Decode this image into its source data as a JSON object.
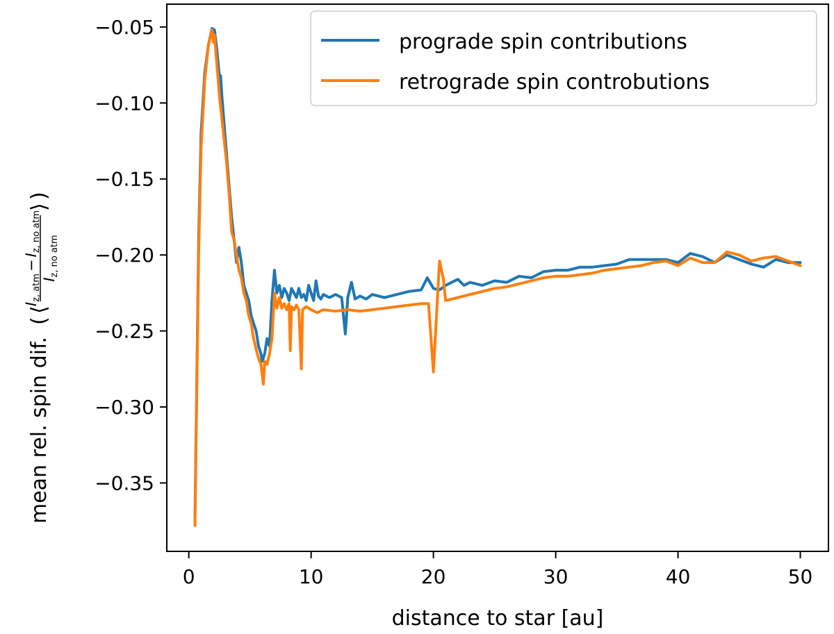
{
  "chart_data": {
    "type": "line",
    "xlabel": "distance to star [au]",
    "ylabel_prefix": "mean rel. spin dif.",
    "ylabel_numerator": "I_{z, atm} − I_{z, no atm}",
    "ylabel_denominator": "I_{z, no atm}",
    "ylabel_num_main_1": "I",
    "ylabel_num_sub_1": "z, atm",
    "ylabel_num_minus": "−",
    "ylabel_num_main_2": "I",
    "ylabel_num_sub_2": "z, no atm",
    "ylabel_den_main": "I",
    "ylabel_den_sub": "z, no atm",
    "xlim": [
      -1.8,
      52.3
    ],
    "ylim": [
      -0.395,
      -0.035
    ],
    "xticks": [
      0,
      10,
      20,
      30,
      40,
      50
    ],
    "xtick_labels": [
      "0",
      "10",
      "20",
      "30",
      "40",
      "50"
    ],
    "yticks": [
      -0.35,
      -0.3,
      -0.25,
      -0.2,
      -0.15,
      -0.1,
      -0.05
    ],
    "ytick_labels": [
      "−0.35",
      "−0.30",
      "−0.25",
      "−0.20",
      "−0.15",
      "−0.10",
      "−0.05"
    ],
    "grid": false,
    "legend_position": "top-right",
    "series": [
      {
        "name": "prograde spin contributions",
        "color": "#1f77b4",
        "points": [
          [
            0.5,
            -0.375
          ],
          [
            0.8,
            -0.19
          ],
          [
            1.0,
            -0.12
          ],
          [
            1.3,
            -0.08
          ],
          [
            1.6,
            -0.062
          ],
          [
            1.9,
            -0.051
          ],
          [
            2.1,
            -0.052
          ],
          [
            2.3,
            -0.065
          ],
          [
            2.5,
            -0.083
          ],
          [
            2.6,
            -0.082
          ],
          [
            2.7,
            -0.095
          ],
          [
            2.9,
            -0.115
          ],
          [
            3.1,
            -0.135
          ],
          [
            3.3,
            -0.155
          ],
          [
            3.5,
            -0.175
          ],
          [
            3.7,
            -0.19
          ],
          [
            3.9,
            -0.205
          ],
          [
            4.1,
            -0.195
          ],
          [
            4.3,
            -0.205
          ],
          [
            4.5,
            -0.22
          ],
          [
            4.7,
            -0.225
          ],
          [
            4.9,
            -0.23
          ],
          [
            5.1,
            -0.24
          ],
          [
            5.3,
            -0.245
          ],
          [
            5.5,
            -0.25
          ],
          [
            5.7,
            -0.26
          ],
          [
            5.9,
            -0.265
          ],
          [
            6.0,
            -0.27
          ],
          [
            6.2,
            -0.265
          ],
          [
            6.4,
            -0.255
          ],
          [
            6.6,
            -0.26
          ],
          [
            6.8,
            -0.23
          ],
          [
            7.0,
            -0.21
          ],
          [
            7.2,
            -0.225
          ],
          [
            7.4,
            -0.22
          ],
          [
            7.6,
            -0.228
          ],
          [
            7.8,
            -0.222
          ],
          [
            8.0,
            -0.225
          ],
          [
            8.2,
            -0.23
          ],
          [
            8.4,
            -0.222
          ],
          [
            8.6,
            -0.225
          ],
          [
            8.8,
            -0.228
          ],
          [
            9.0,
            -0.222
          ],
          [
            9.2,
            -0.228
          ],
          [
            9.4,
            -0.226
          ],
          [
            9.6,
            -0.23
          ],
          [
            9.8,
            -0.22
          ],
          [
            10.0,
            -0.225
          ],
          [
            10.2,
            -0.23
          ],
          [
            10.4,
            -0.217
          ],
          [
            10.6,
            -0.227
          ],
          [
            10.8,
            -0.229
          ],
          [
            11.0,
            -0.226
          ],
          [
            11.5,
            -0.228
          ],
          [
            12.0,
            -0.226
          ],
          [
            12.5,
            -0.228
          ],
          [
            12.8,
            -0.252
          ],
          [
            13.0,
            -0.228
          ],
          [
            13.3,
            -0.218
          ],
          [
            13.6,
            -0.229
          ],
          [
            14.0,
            -0.227
          ],
          [
            14.5,
            -0.229
          ],
          [
            15.0,
            -0.226
          ],
          [
            16.0,
            -0.228
          ],
          [
            17.0,
            -0.226
          ],
          [
            18.0,
            -0.224
          ],
          [
            19.0,
            -0.223
          ],
          [
            19.5,
            -0.215
          ],
          [
            20.0,
            -0.222
          ],
          [
            20.5,
            -0.223
          ],
          [
            21.0,
            -0.22
          ],
          [
            22.0,
            -0.216
          ],
          [
            22.5,
            -0.22
          ],
          [
            23.0,
            -0.218
          ],
          [
            24.0,
            -0.22
          ],
          [
            25.0,
            -0.217
          ],
          [
            26.0,
            -0.218
          ],
          [
            27.0,
            -0.214
          ],
          [
            28.0,
            -0.215
          ],
          [
            29.0,
            -0.211
          ],
          [
            30.0,
            -0.21
          ],
          [
            31.0,
            -0.21
          ],
          [
            32.0,
            -0.208
          ],
          [
            33.0,
            -0.208
          ],
          [
            34.0,
            -0.207
          ],
          [
            35.0,
            -0.206
          ],
          [
            36.0,
            -0.203
          ],
          [
            37.0,
            -0.203
          ],
          [
            38.0,
            -0.203
          ],
          [
            39.0,
            -0.203
          ],
          [
            40.0,
            -0.205
          ],
          [
            41.0,
            -0.199
          ],
          [
            42.0,
            -0.201
          ],
          [
            43.0,
            -0.205
          ],
          [
            44.0,
            -0.2
          ],
          [
            45.0,
            -0.203
          ],
          [
            46.0,
            -0.206
          ],
          [
            47.0,
            -0.208
          ],
          [
            48.0,
            -0.203
          ],
          [
            49.0,
            -0.205
          ],
          [
            50.0,
            -0.205
          ]
        ]
      },
      {
        "name": "retrograde spin controbutions",
        "color": "#ff7f0e",
        "points": [
          [
            0.5,
            -0.378
          ],
          [
            0.8,
            -0.2
          ],
          [
            1.0,
            -0.13
          ],
          [
            1.3,
            -0.085
          ],
          [
            1.6,
            -0.062
          ],
          [
            1.9,
            -0.052
          ],
          [
            2.0,
            -0.06
          ],
          [
            2.1,
            -0.055
          ],
          [
            2.3,
            -0.075
          ],
          [
            2.5,
            -0.095
          ],
          [
            2.7,
            -0.11
          ],
          [
            2.9,
            -0.125
          ],
          [
            3.1,
            -0.14
          ],
          [
            3.3,
            -0.16
          ],
          [
            3.5,
            -0.185
          ],
          [
            3.7,
            -0.19
          ],
          [
            3.9,
            -0.2
          ],
          [
            4.1,
            -0.21
          ],
          [
            4.3,
            -0.215
          ],
          [
            4.5,
            -0.225
          ],
          [
            4.7,
            -0.23
          ],
          [
            4.9,
            -0.24
          ],
          [
            5.1,
            -0.245
          ],
          [
            5.3,
            -0.255
          ],
          [
            5.5,
            -0.262
          ],
          [
            5.7,
            -0.268
          ],
          [
            5.9,
            -0.272
          ],
          [
            6.1,
            -0.285
          ],
          [
            6.2,
            -0.27
          ],
          [
            6.4,
            -0.272
          ],
          [
            6.6,
            -0.265
          ],
          [
            6.8,
            -0.255
          ],
          [
            7.0,
            -0.225
          ],
          [
            7.2,
            -0.235
          ],
          [
            7.4,
            -0.228
          ],
          [
            7.6,
            -0.235
          ],
          [
            7.8,
            -0.232
          ],
          [
            8.0,
            -0.236
          ],
          [
            8.2,
            -0.232
          ],
          [
            8.3,
            -0.263
          ],
          [
            8.4,
            -0.234
          ],
          [
            8.6,
            -0.236
          ],
          [
            8.8,
            -0.233
          ],
          [
            9.0,
            -0.236
          ],
          [
            9.2,
            -0.275
          ],
          [
            9.3,
            -0.236
          ],
          [
            9.6,
            -0.234
          ],
          [
            10.0,
            -0.236
          ],
          [
            10.5,
            -0.238
          ],
          [
            11.0,
            -0.236
          ],
          [
            12.0,
            -0.237
          ],
          [
            13.0,
            -0.236
          ],
          [
            14.0,
            -0.237
          ],
          [
            15.0,
            -0.236
          ],
          [
            16.0,
            -0.235
          ],
          [
            17.0,
            -0.234
          ],
          [
            18.0,
            -0.233
          ],
          [
            19.0,
            -0.232
          ],
          [
            19.6,
            -0.232
          ],
          [
            20.0,
            -0.277
          ],
          [
            20.5,
            -0.204
          ],
          [
            20.8,
            -0.215
          ],
          [
            21.0,
            -0.23
          ],
          [
            22.0,
            -0.228
          ],
          [
            23.0,
            -0.226
          ],
          [
            24.0,
            -0.224
          ],
          [
            25.0,
            -0.222
          ],
          [
            26.0,
            -0.221
          ],
          [
            27.0,
            -0.219
          ],
          [
            28.0,
            -0.217
          ],
          [
            29.0,
            -0.215
          ],
          [
            30.0,
            -0.214
          ],
          [
            31.0,
            -0.214
          ],
          [
            32.0,
            -0.213
          ],
          [
            33.0,
            -0.212
          ],
          [
            34.0,
            -0.21
          ],
          [
            35.0,
            -0.209
          ],
          [
            36.0,
            -0.208
          ],
          [
            37.0,
            -0.207
          ],
          [
            38.0,
            -0.205
          ],
          [
            39.0,
            -0.204
          ],
          [
            40.0,
            -0.207
          ],
          [
            41.0,
            -0.202
          ],
          [
            42.0,
            -0.205
          ],
          [
            43.0,
            -0.205
          ],
          [
            44.0,
            -0.198
          ],
          [
            45.0,
            -0.2
          ],
          [
            46.0,
            -0.204
          ],
          [
            47.0,
            -0.202
          ],
          [
            48.0,
            -0.201
          ],
          [
            49.0,
            -0.204
          ],
          [
            50.0,
            -0.207
          ]
        ]
      }
    ]
  }
}
